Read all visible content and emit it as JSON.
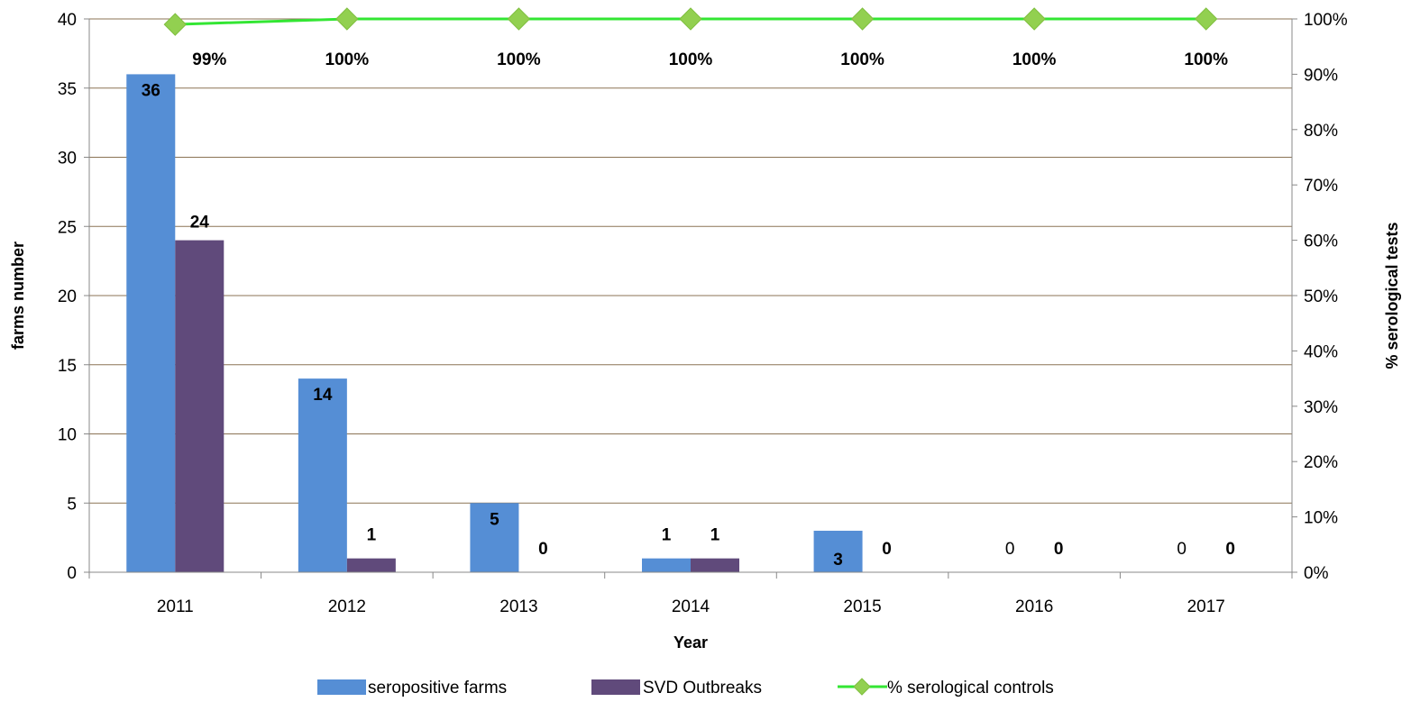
{
  "chart_data": {
    "type": "bar",
    "categories": [
      "2011",
      "2012",
      "2013",
      "2014",
      "2015",
      "2016",
      "2017"
    ],
    "xlabel": "Year",
    "ylabel": "farms number",
    "y2label": "% serological tests",
    "ylim": [
      0,
      40
    ],
    "yticks": [
      "0",
      "5",
      "10",
      "15",
      "20",
      "25",
      "30",
      "35",
      "40"
    ],
    "y2lim": [
      0,
      100
    ],
    "y2ticks": [
      "0%",
      "10%",
      "20%",
      "30%",
      "40%",
      "50%",
      "60%",
      "70%",
      "80%",
      "90%",
      "100%"
    ],
    "grid": true,
    "legend_position": "bottom",
    "series": [
      {
        "name": "seropositive farms",
        "type": "bar",
        "axis": "left",
        "color": "#558ED5",
        "values": [
          36,
          14,
          5,
          1,
          3,
          0,
          0
        ],
        "labels": [
          "36",
          "14",
          "5",
          "1",
          "3",
          "0",
          "0"
        ]
      },
      {
        "name": "SVD Outbreaks",
        "type": "bar",
        "axis": "left",
        "color": "#604A7B",
        "values": [
          24,
          1,
          0,
          1,
          0,
          0,
          0
        ],
        "labels": [
          "24",
          "1",
          "0",
          "1",
          "0",
          "0",
          "0"
        ]
      },
      {
        "name": "% serological controls",
        "type": "line",
        "axis": "right",
        "color": "#33E633",
        "marker_color": "#92D050",
        "values": [
          99,
          100,
          100,
          100,
          100,
          100,
          100
        ],
        "labels": [
          "99%",
          "100%",
          "100%",
          "100%",
          "100%",
          "100%",
          "100%"
        ]
      }
    ]
  }
}
